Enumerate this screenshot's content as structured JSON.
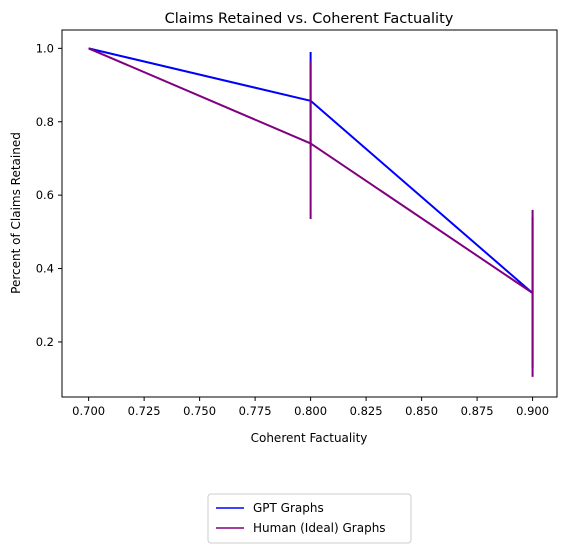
{
  "chart_data": {
    "type": "line",
    "title": "Claims Retained vs. Coherent Factuality",
    "xlabel": "Coherent Factuality",
    "ylabel": "Percent of Claims Retained",
    "xlim": [
      0.688,
      0.911
    ],
    "ylim": [
      0.05,
      1.05
    ],
    "x_ticks": [
      "0.700",
      "0.725",
      "0.750",
      "0.775",
      "0.800",
      "0.825",
      "0.850",
      "0.875",
      "0.900"
    ],
    "y_ticks": [
      "0.2",
      "0.4",
      "0.6",
      "0.8",
      "1.0"
    ],
    "grid": false,
    "legend_position": "below",
    "series": [
      {
        "name": "GPT Graphs",
        "color": "#0000ff",
        "x": [
          0.7,
          0.8,
          0.9
        ],
        "y": [
          1.0,
          0.857,
          0.333
        ],
        "error_low": [
          1.0,
          0.73,
          0.13
        ],
        "error_high": [
          1.0,
          0.99,
          0.54
        ]
      },
      {
        "name": "Human (Ideal) Graphs",
        "color": "#800080",
        "x": [
          0.7,
          0.8,
          0.9
        ],
        "y": [
          1.0,
          0.741,
          0.333
        ],
        "error_low": [
          1.0,
          0.535,
          0.105
        ],
        "error_high": [
          1.0,
          0.965,
          0.56
        ]
      }
    ]
  }
}
